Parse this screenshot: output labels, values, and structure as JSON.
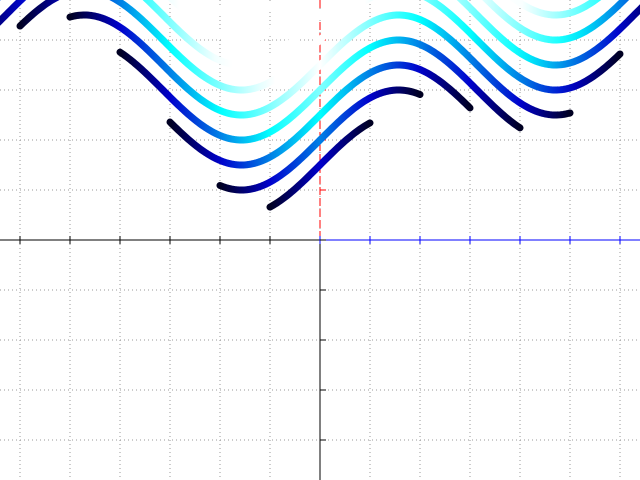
{
  "chart_data": {
    "type": "function-curves",
    "function": "sin",
    "amplitude": 1,
    "xlim": [
      -6.4,
      6.4
    ],
    "ylim": [
      -4.8,
      4.8
    ],
    "xticks": [
      -6,
      -5,
      -4,
      -3,
      -2,
      -1,
      0,
      1,
      2,
      3,
      4,
      5,
      6
    ],
    "yticks": [
      -4,
      -3,
      -2,
      -1,
      0,
      1,
      2,
      3,
      4
    ],
    "grid": true,
    "grid_color": "#999999",
    "axis_colors": {
      "x_negative": "#000000",
      "x_positive": "#0000ff",
      "y_positive": "#ff0000",
      "y_negative": "#000000"
    },
    "colormap": [
      {
        "distance": 0,
        "color": "#000022"
      },
      {
        "distance": 1,
        "color": "#0000cc"
      },
      {
        "distance": 3,
        "color": "#00ffff"
      },
      {
        "distance": 5,
        "color": "#ffffff"
      }
    ],
    "curves": [
      {
        "offset": 1.5,
        "x_start": -1,
        "x_end": 1
      },
      {
        "offset": 2,
        "x_start": -2,
        "x_end": 2
      },
      {
        "offset": 2.5,
        "x_start": -3,
        "x_end": 3
      },
      {
        "offset": 3,
        "x_start": -4,
        "x_end": 4
      },
      {
        "offset": 3.5,
        "x_start": -5,
        "x_end": 5
      },
      {
        "offset": 4,
        "x_start": -6,
        "x_end": 6
      },
      {
        "offset": 4.5,
        "x_start": -7,
        "x_end": 7
      },
      {
        "offset": 5,
        "x_start": -8,
        "x_end": 8
      },
      {
        "offset": 5.5,
        "x_start": -9,
        "x_end": 9
      }
    ]
  }
}
